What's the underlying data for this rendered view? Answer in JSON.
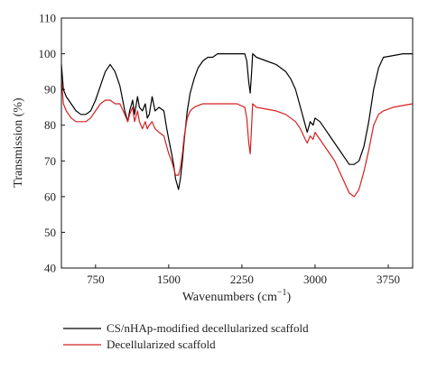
{
  "chart_data": {
    "type": "line",
    "title": "",
    "xlabel": "Wavenumbers (cm",
    "xlabel_sup": "−1",
    "xlabel_close": ")",
    "ylabel": "Transmission (%)",
    "xlim": [
      400,
      4000
    ],
    "ylim": [
      40,
      110
    ],
    "x_ticks": [
      750,
      1500,
      2250,
      3000,
      3750
    ],
    "y_ticks": [
      40,
      50,
      60,
      70,
      80,
      90,
      100,
      110
    ],
    "grid": false,
    "legend_position": "bottom",
    "series": [
      {
        "name": "CS/nHAp-modified decellularized scaffold",
        "color": "#000000",
        "points": [
          [
            400,
            97
          ],
          [
            420,
            90
          ],
          [
            450,
            88
          ],
          [
            500,
            86
          ],
          [
            550,
            84
          ],
          [
            600,
            83
          ],
          [
            650,
            83
          ],
          [
            700,
            84
          ],
          [
            750,
            87
          ],
          [
            800,
            91
          ],
          [
            850,
            95
          ],
          [
            900,
            97
          ],
          [
            950,
            95
          ],
          [
            1000,
            91
          ],
          [
            1050,
            84
          ],
          [
            1080,
            81
          ],
          [
            1100,
            84
          ],
          [
            1130,
            87
          ],
          [
            1150,
            83
          ],
          [
            1180,
            88
          ],
          [
            1200,
            85
          ],
          [
            1230,
            84
          ],
          [
            1260,
            86
          ],
          [
            1280,
            82
          ],
          [
            1300,
            83
          ],
          [
            1330,
            88
          ],
          [
            1360,
            84
          ],
          [
            1400,
            85
          ],
          [
            1450,
            84
          ],
          [
            1480,
            79
          ],
          [
            1500,
            76
          ],
          [
            1530,
            72
          ],
          [
            1550,
            69
          ],
          [
            1570,
            65
          ],
          [
            1590,
            63
          ],
          [
            1600,
            62
          ],
          [
            1620,
            65
          ],
          [
            1640,
            70
          ],
          [
            1660,
            76
          ],
          [
            1690,
            84
          ],
          [
            1720,
            89
          ],
          [
            1760,
            93
          ],
          [
            1800,
            96
          ],
          [
            1850,
            98
          ],
          [
            1900,
            99
          ],
          [
            1950,
            99
          ],
          [
            2000,
            100
          ],
          [
            2100,
            100
          ],
          [
            2200,
            100
          ],
          [
            2280,
            100
          ],
          [
            2300,
            98
          ],
          [
            2320,
            92
          ],
          [
            2335,
            89
          ],
          [
            2350,
            95
          ],
          [
            2360,
            100
          ],
          [
            2400,
            99
          ],
          [
            2500,
            98
          ],
          [
            2600,
            97
          ],
          [
            2700,
            95
          ],
          [
            2750,
            93
          ],
          [
            2800,
            90
          ],
          [
            2850,
            85
          ],
          [
            2900,
            80
          ],
          [
            2920,
            78
          ],
          [
            2950,
            81
          ],
          [
            2980,
            80
          ],
          [
            3000,
            82
          ],
          [
            3050,
            81
          ],
          [
            3100,
            79
          ],
          [
            3150,
            77
          ],
          [
            3200,
            75
          ],
          [
            3250,
            73
          ],
          [
            3300,
            71
          ],
          [
            3350,
            69
          ],
          [
            3400,
            69
          ],
          [
            3450,
            70
          ],
          [
            3500,
            74
          ],
          [
            3550,
            81
          ],
          [
            3600,
            90
          ],
          [
            3650,
            96
          ],
          [
            3700,
            99
          ],
          [
            3800,
            99.5
          ],
          [
            3900,
            100
          ],
          [
            4000,
            100
          ]
        ]
      },
      {
        "name": "Decellularized scaffold",
        "color": "#d42020",
        "points": [
          [
            400,
            93
          ],
          [
            420,
            86
          ],
          [
            450,
            84
          ],
          [
            500,
            82
          ],
          [
            550,
            81
          ],
          [
            600,
            81
          ],
          [
            650,
            81
          ],
          [
            700,
            82
          ],
          [
            750,
            84
          ],
          [
            800,
            86
          ],
          [
            850,
            87
          ],
          [
            900,
            87
          ],
          [
            950,
            86
          ],
          [
            1000,
            86
          ],
          [
            1050,
            83
          ],
          [
            1080,
            81
          ],
          [
            1100,
            83
          ],
          [
            1130,
            85
          ],
          [
            1150,
            81
          ],
          [
            1180,
            84
          ],
          [
            1200,
            81
          ],
          [
            1230,
            79
          ],
          [
            1260,
            81
          ],
          [
            1280,
            79
          ],
          [
            1300,
            80
          ],
          [
            1330,
            81
          ],
          [
            1360,
            79
          ],
          [
            1400,
            78
          ],
          [
            1450,
            77
          ],
          [
            1480,
            74
          ],
          [
            1500,
            72
          ],
          [
            1530,
            70
          ],
          [
            1550,
            68
          ],
          [
            1570,
            66
          ],
          [
            1590,
            66
          ],
          [
            1600,
            66
          ],
          [
            1620,
            68
          ],
          [
            1640,
            72
          ],
          [
            1660,
            77
          ],
          [
            1690,
            82
          ],
          [
            1720,
            84
          ],
          [
            1760,
            85
          ],
          [
            1800,
            85.5
          ],
          [
            1850,
            86
          ],
          [
            1900,
            86
          ],
          [
            2000,
            86
          ],
          [
            2100,
            86
          ],
          [
            2200,
            86
          ],
          [
            2280,
            85
          ],
          [
            2300,
            82
          ],
          [
            2320,
            75
          ],
          [
            2335,
            72
          ],
          [
            2350,
            80
          ],
          [
            2360,
            86
          ],
          [
            2400,
            85
          ],
          [
            2500,
            84.5
          ],
          [
            2600,
            84
          ],
          [
            2700,
            83
          ],
          [
            2750,
            82
          ],
          [
            2800,
            81
          ],
          [
            2850,
            79
          ],
          [
            2900,
            76
          ],
          [
            2920,
            75
          ],
          [
            2950,
            77
          ],
          [
            2980,
            76
          ],
          [
            3000,
            78
          ],
          [
            3050,
            76
          ],
          [
            3100,
            74
          ],
          [
            3150,
            72
          ],
          [
            3200,
            70
          ],
          [
            3250,
            67
          ],
          [
            3300,
            64
          ],
          [
            3350,
            61
          ],
          [
            3400,
            60
          ],
          [
            3450,
            62
          ],
          [
            3500,
            67
          ],
          [
            3550,
            73
          ],
          [
            3600,
            80
          ],
          [
            3650,
            83
          ],
          [
            3700,
            84
          ],
          [
            3800,
            85
          ],
          [
            3900,
            85.5
          ],
          [
            4000,
            86
          ]
        ]
      }
    ]
  }
}
